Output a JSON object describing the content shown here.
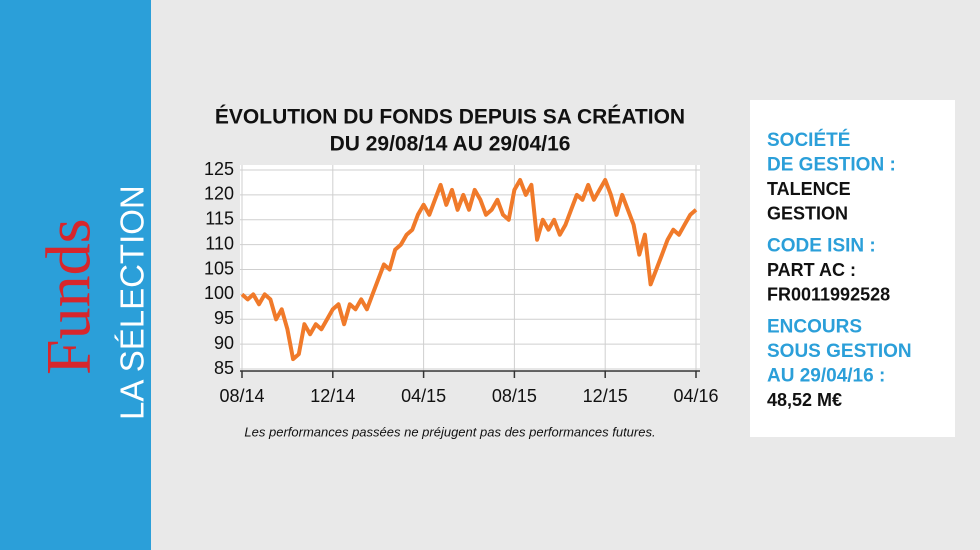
{
  "sidebar": {
    "title": "Funds",
    "subtitle": "LA SÉLECTION"
  },
  "chart_data": {
    "type": "line",
    "title": "ÉVOLUTION DU FONDS DEPUIS SA CRÉATION",
    "subtitle": "DU 29/08/14 AU 29/04/16",
    "note": "Les performances passées ne préjugent pas des performances futures.",
    "xlim": [
      0,
      20
    ],
    "xticks": [
      {
        "value": 0,
        "label": "08/14"
      },
      {
        "value": 4,
        "label": "12/14"
      },
      {
        "value": 8,
        "label": "04/15"
      },
      {
        "value": 12,
        "label": "08/15"
      },
      {
        "value": 16,
        "label": "12/15"
      },
      {
        "value": 20,
        "label": "04/16"
      }
    ],
    "ylim": [
      85,
      125
    ],
    "yticks": [
      85,
      90,
      95,
      100,
      105,
      110,
      115,
      120,
      125
    ],
    "grid": true,
    "series": [
      {
        "color": "#f07a2a",
        "x": [
          0,
          0.25,
          0.5,
          0.75,
          1,
          1.25,
          1.5,
          1.75,
          2,
          2.25,
          2.5,
          2.75,
          3,
          3.25,
          3.5,
          3.75,
          4,
          4.25,
          4.5,
          4.75,
          5,
          5.25,
          5.5,
          5.75,
          6,
          6.25,
          6.5,
          6.75,
          7,
          7.25,
          7.5,
          7.75,
          8,
          8.25,
          8.5,
          8.75,
          9,
          9.25,
          9.5,
          9.75,
          10,
          10.25,
          10.5,
          10.75,
          11,
          11.25,
          11.5,
          11.75,
          12,
          12.25,
          12.5,
          12.75,
          13,
          13.25,
          13.5,
          13.75,
          14,
          14.25,
          14.5,
          14.75,
          15,
          15.25,
          15.5,
          15.75,
          16,
          16.25,
          16.5,
          16.75,
          17,
          17.25,
          17.5,
          17.75,
          18,
          18.25,
          18.5,
          18.75,
          19,
          19.25,
          19.5,
          19.75,
          20
        ],
        "values": [
          100,
          99,
          100,
          98,
          100,
          99,
          95,
          97,
          93,
          87,
          88,
          94,
          92,
          94,
          93,
          95,
          97,
          98,
          94,
          98,
          97,
          99,
          97,
          100,
          103,
          106,
          105,
          109,
          110,
          112,
          113,
          116,
          118,
          116,
          119,
          122,
          118,
          121,
          117,
          120,
          117,
          121,
          119,
          116,
          117,
          119,
          116,
          115,
          121,
          123,
          120,
          122,
          111,
          115,
          113,
          115,
          112,
          114,
          117,
          120,
          119,
          122,
          119,
          121,
          123,
          120,
          116,
          120,
          117,
          114,
          108,
          112,
          102,
          105,
          108,
          111,
          113,
          112,
          114,
          116,
          117
        ]
      }
    ]
  },
  "info_panel": [
    {
      "label": [
        "SOCIÉTÉ",
        "DE GESTION :"
      ],
      "value": [
        "TALENCE",
        "GESTION"
      ]
    },
    {
      "label": [
        "CODE ISIN :"
      ],
      "value": [
        "PART AC :",
        "FR0011992528"
      ]
    },
    {
      "label": [
        "ENCOURS",
        "SOUS GESTION",
        "AU 29/04/16 :"
      ],
      "value": [
        "48,52 M€"
      ]
    }
  ]
}
